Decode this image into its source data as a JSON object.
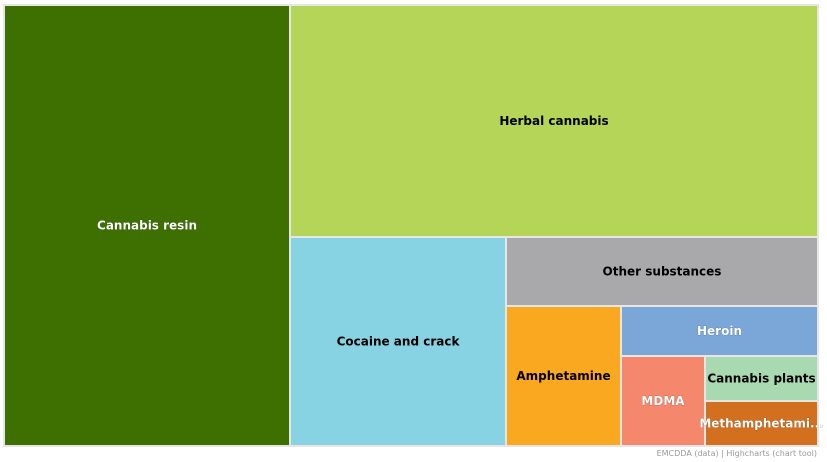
{
  "chart_data": {
    "type": "treemap",
    "title": "",
    "items": [
      {
        "name": "Cannabis resin",
        "color": "#3d7001",
        "label_color": "#ffffff",
        "rel_value": 36.2
      },
      {
        "name": "Herbal cannabis",
        "color": "#b4d558",
        "label_color": "#000000",
        "rel_value": 27.3
      },
      {
        "name": "Cocaine and crack",
        "color": "#87d3e3",
        "label_color": "#000000",
        "rel_value": 12.5
      },
      {
        "name": "Other substances",
        "color": "#a9a9ab",
        "label_color": "#000000",
        "rel_value": 5.0
      },
      {
        "name": "Heroin",
        "color": "#7ba7d8",
        "label_color": "#ffffff",
        "rel_value": 3.2
      },
      {
        "name": "Amphetamine",
        "color": "#f9a81f",
        "label_color": "#000000",
        "rel_value": 5.0
      },
      {
        "name": "MDMA",
        "color": "#f5876c",
        "label_color": "#ffffff",
        "rel_value": 3.2
      },
      {
        "name": "Cannabis plants",
        "color": "#a9d9b0",
        "label_color": "#000000",
        "rel_value": 1.6
      },
      {
        "name": "Methamphetami...",
        "color": "#d2701f",
        "label_color": "#ffffff",
        "rel_value": 1.6
      }
    ],
    "legend": "none"
  },
  "credit": "EMCDDA (data) | Highcharts (chart tool)"
}
